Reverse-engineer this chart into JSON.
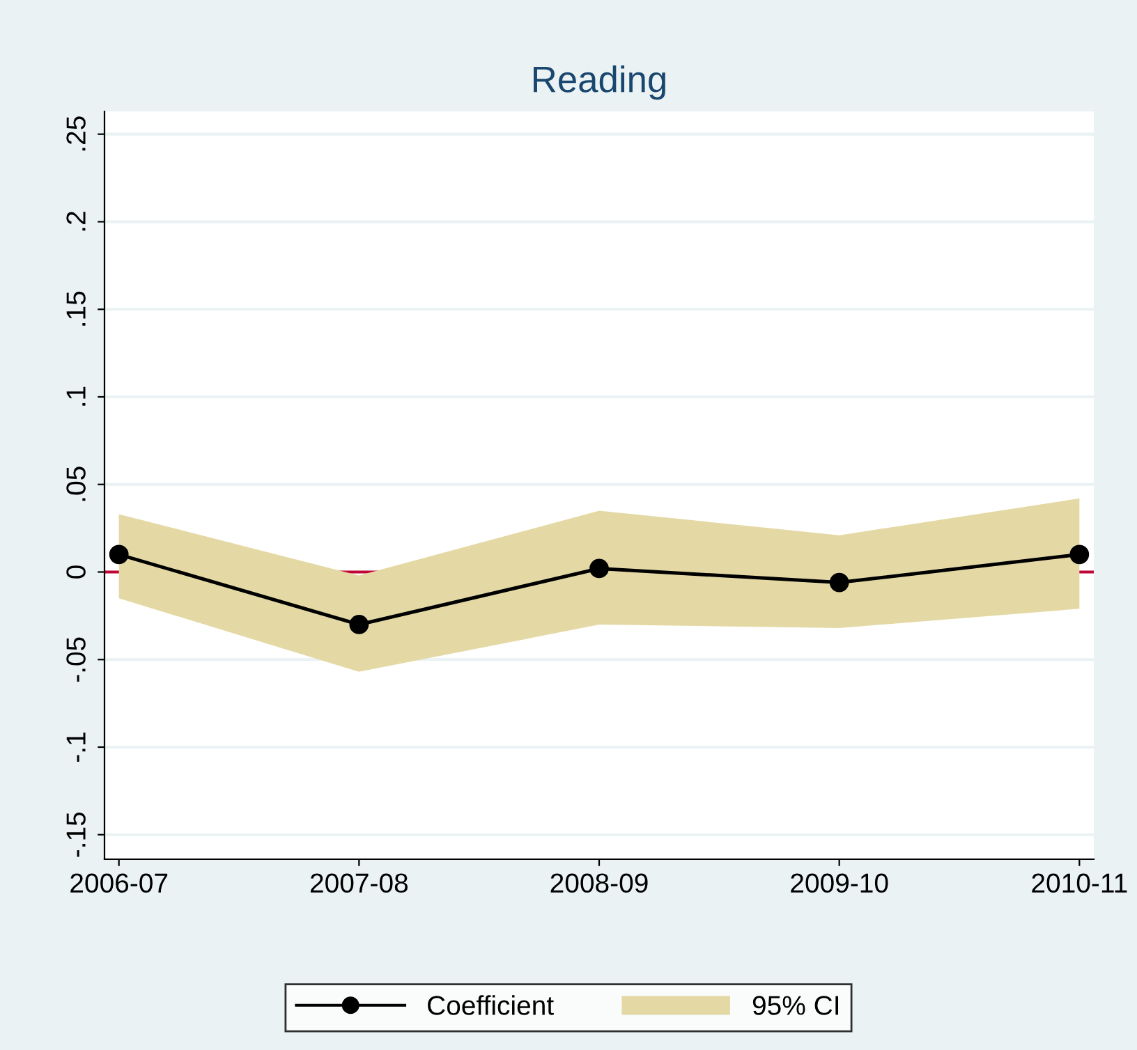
{
  "chart_data": {
    "type": "line",
    "title": "Reading",
    "categories": [
      "2006-07",
      "2007-08",
      "2008-09",
      "2009-10",
      "2010-11"
    ],
    "series": [
      {
        "name": "Coefficient",
        "color": "#000000",
        "values": [
          0.01,
          -0.03,
          0.002,
          -0.006,
          0.01
        ],
        "lower": [
          -0.015,
          -0.057,
          -0.03,
          -0.032,
          -0.021
        ],
        "upper": [
          0.033,
          -0.002,
          0.035,
          0.021,
          0.042
        ]
      },
      {
        "name": "95% CI",
        "type": "area",
        "color": "#e4d9a5",
        "values": [
          null,
          null,
          null,
          null,
          null
        ]
      }
    ],
    "ylim": [
      -0.164,
      0.263
    ],
    "yticks": [
      {
        "value": -0.15,
        "label": "-.15"
      },
      {
        "value": -0.1,
        "label": "-.1"
      },
      {
        "value": -0.05,
        "label": "-.05"
      },
      0,
      {
        "value": 0.05,
        "label": ".05"
      },
      {
        "value": 0.1,
        "label": ".1"
      },
      {
        "value": 0.15,
        "label": ".15"
      },
      {
        "value": 0.2,
        "label": ".2"
      },
      {
        "value": 0.25,
        "label": ".25"
      }
    ],
    "ref_lines": [
      {
        "axis": "y",
        "value": 0,
        "color": "#c10534"
      }
    ],
    "grid": "y",
    "legend": "bottom",
    "marker": "circle"
  }
}
